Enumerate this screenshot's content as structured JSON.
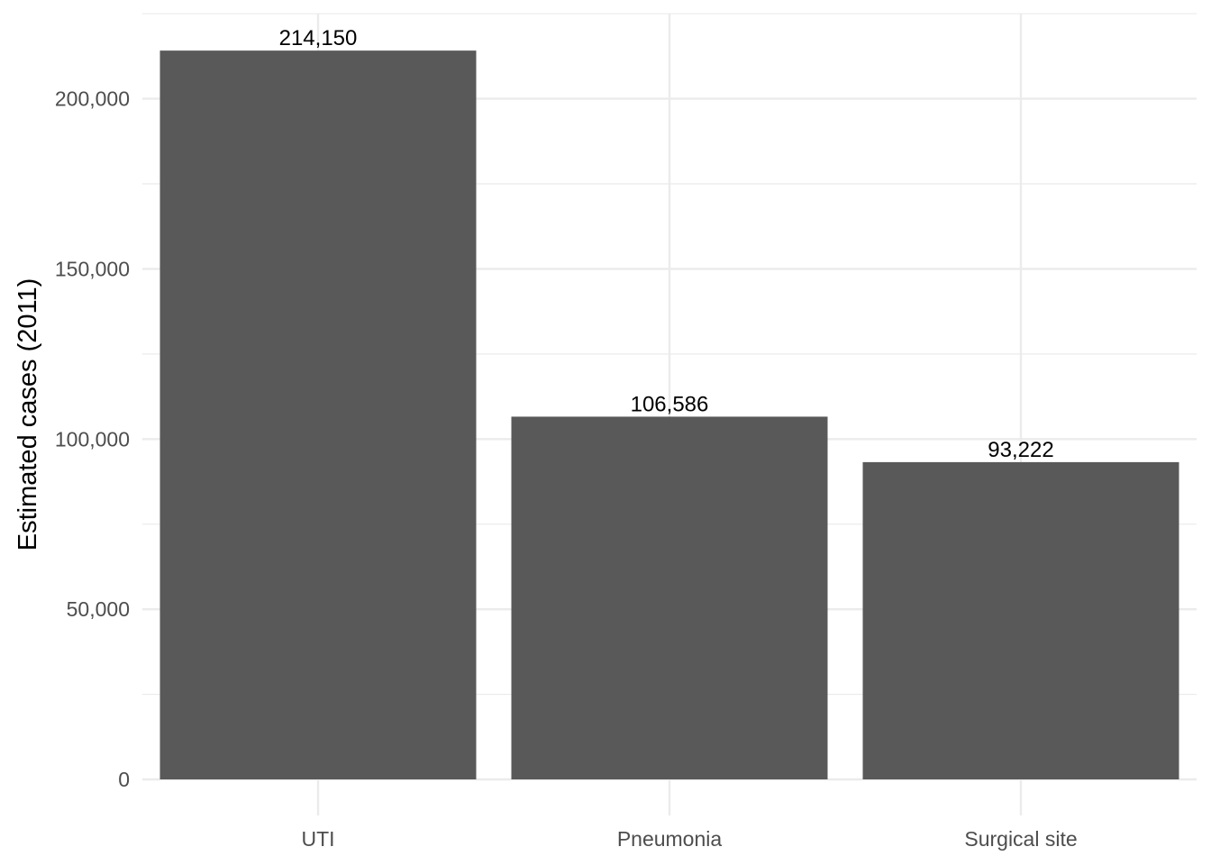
{
  "chart_data": {
    "type": "bar",
    "categories": [
      "UTI",
      "Pneumonia",
      "Surgical site"
    ],
    "values": [
      214150,
      106586,
      93222
    ],
    "data_labels": [
      "214,150",
      "106,586",
      "93,222"
    ],
    "title": "",
    "xlabel": "",
    "ylabel": "Estimated cases (2011)",
    "ylim": [
      0,
      225000
    ],
    "y_ticks": [
      0,
      50000,
      100000,
      150000,
      200000
    ],
    "y_tick_labels": [
      "0",
      "50,000",
      "100,000",
      "150,000",
      "200,000"
    ],
    "grid": true,
    "legend": "none",
    "colors": {
      "bar": "#595959",
      "grid": "#ebebeb",
      "tick_text": "#4d4d4d",
      "text": "#000000"
    }
  }
}
